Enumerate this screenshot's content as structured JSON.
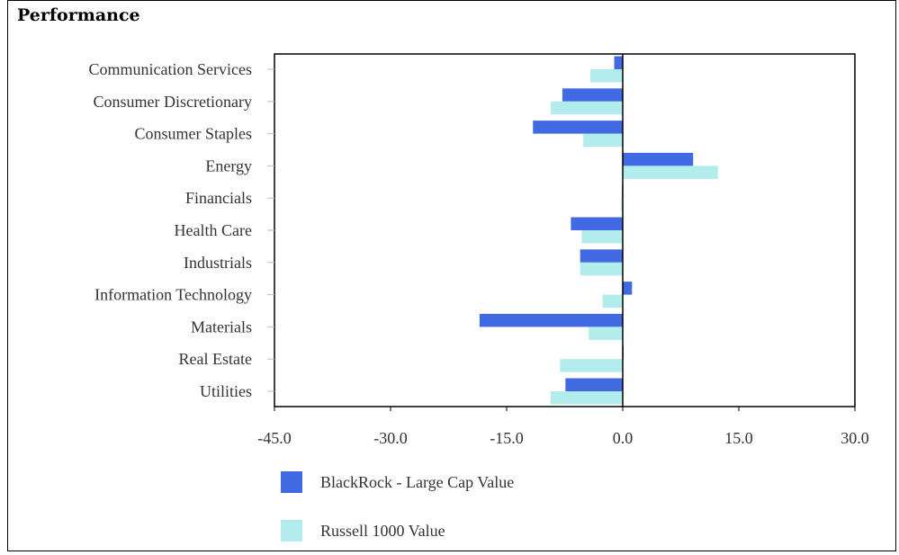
{
  "title": "Performance",
  "chart_data": {
    "type": "bar",
    "orientation": "horizontal",
    "categories": [
      "Communication Services",
      "Consumer Discretionary",
      "Consumer Staples",
      "Energy",
      "Financials",
      "Health Care",
      "Industrials",
      "Information Technology",
      "Materials",
      "Real Estate",
      "Utilities"
    ],
    "series": [
      {
        "name": "BlackRock - Large Cap Value",
        "color": "#4169e1",
        "values": [
          -1.1,
          -7.8,
          -11.6,
          9.1,
          -0.1,
          -6.7,
          -5.5,
          1.2,
          -18.5,
          0.1,
          -7.4
        ]
      },
      {
        "name": "Russell 1000 Value",
        "color": "#b3ecec",
        "values": [
          -4.2,
          -9.3,
          -5.1,
          12.3,
          -0.2,
          -5.3,
          -5.5,
          -2.6,
          -4.4,
          -8.1,
          -9.3
        ]
      }
    ],
    "xlim": [
      -45,
      30
    ],
    "xticks": [
      "-45.0",
      "-30.0",
      "-15.0",
      "0.0",
      "15.0",
      "30.0"
    ],
    "legend_position": "bottom"
  }
}
